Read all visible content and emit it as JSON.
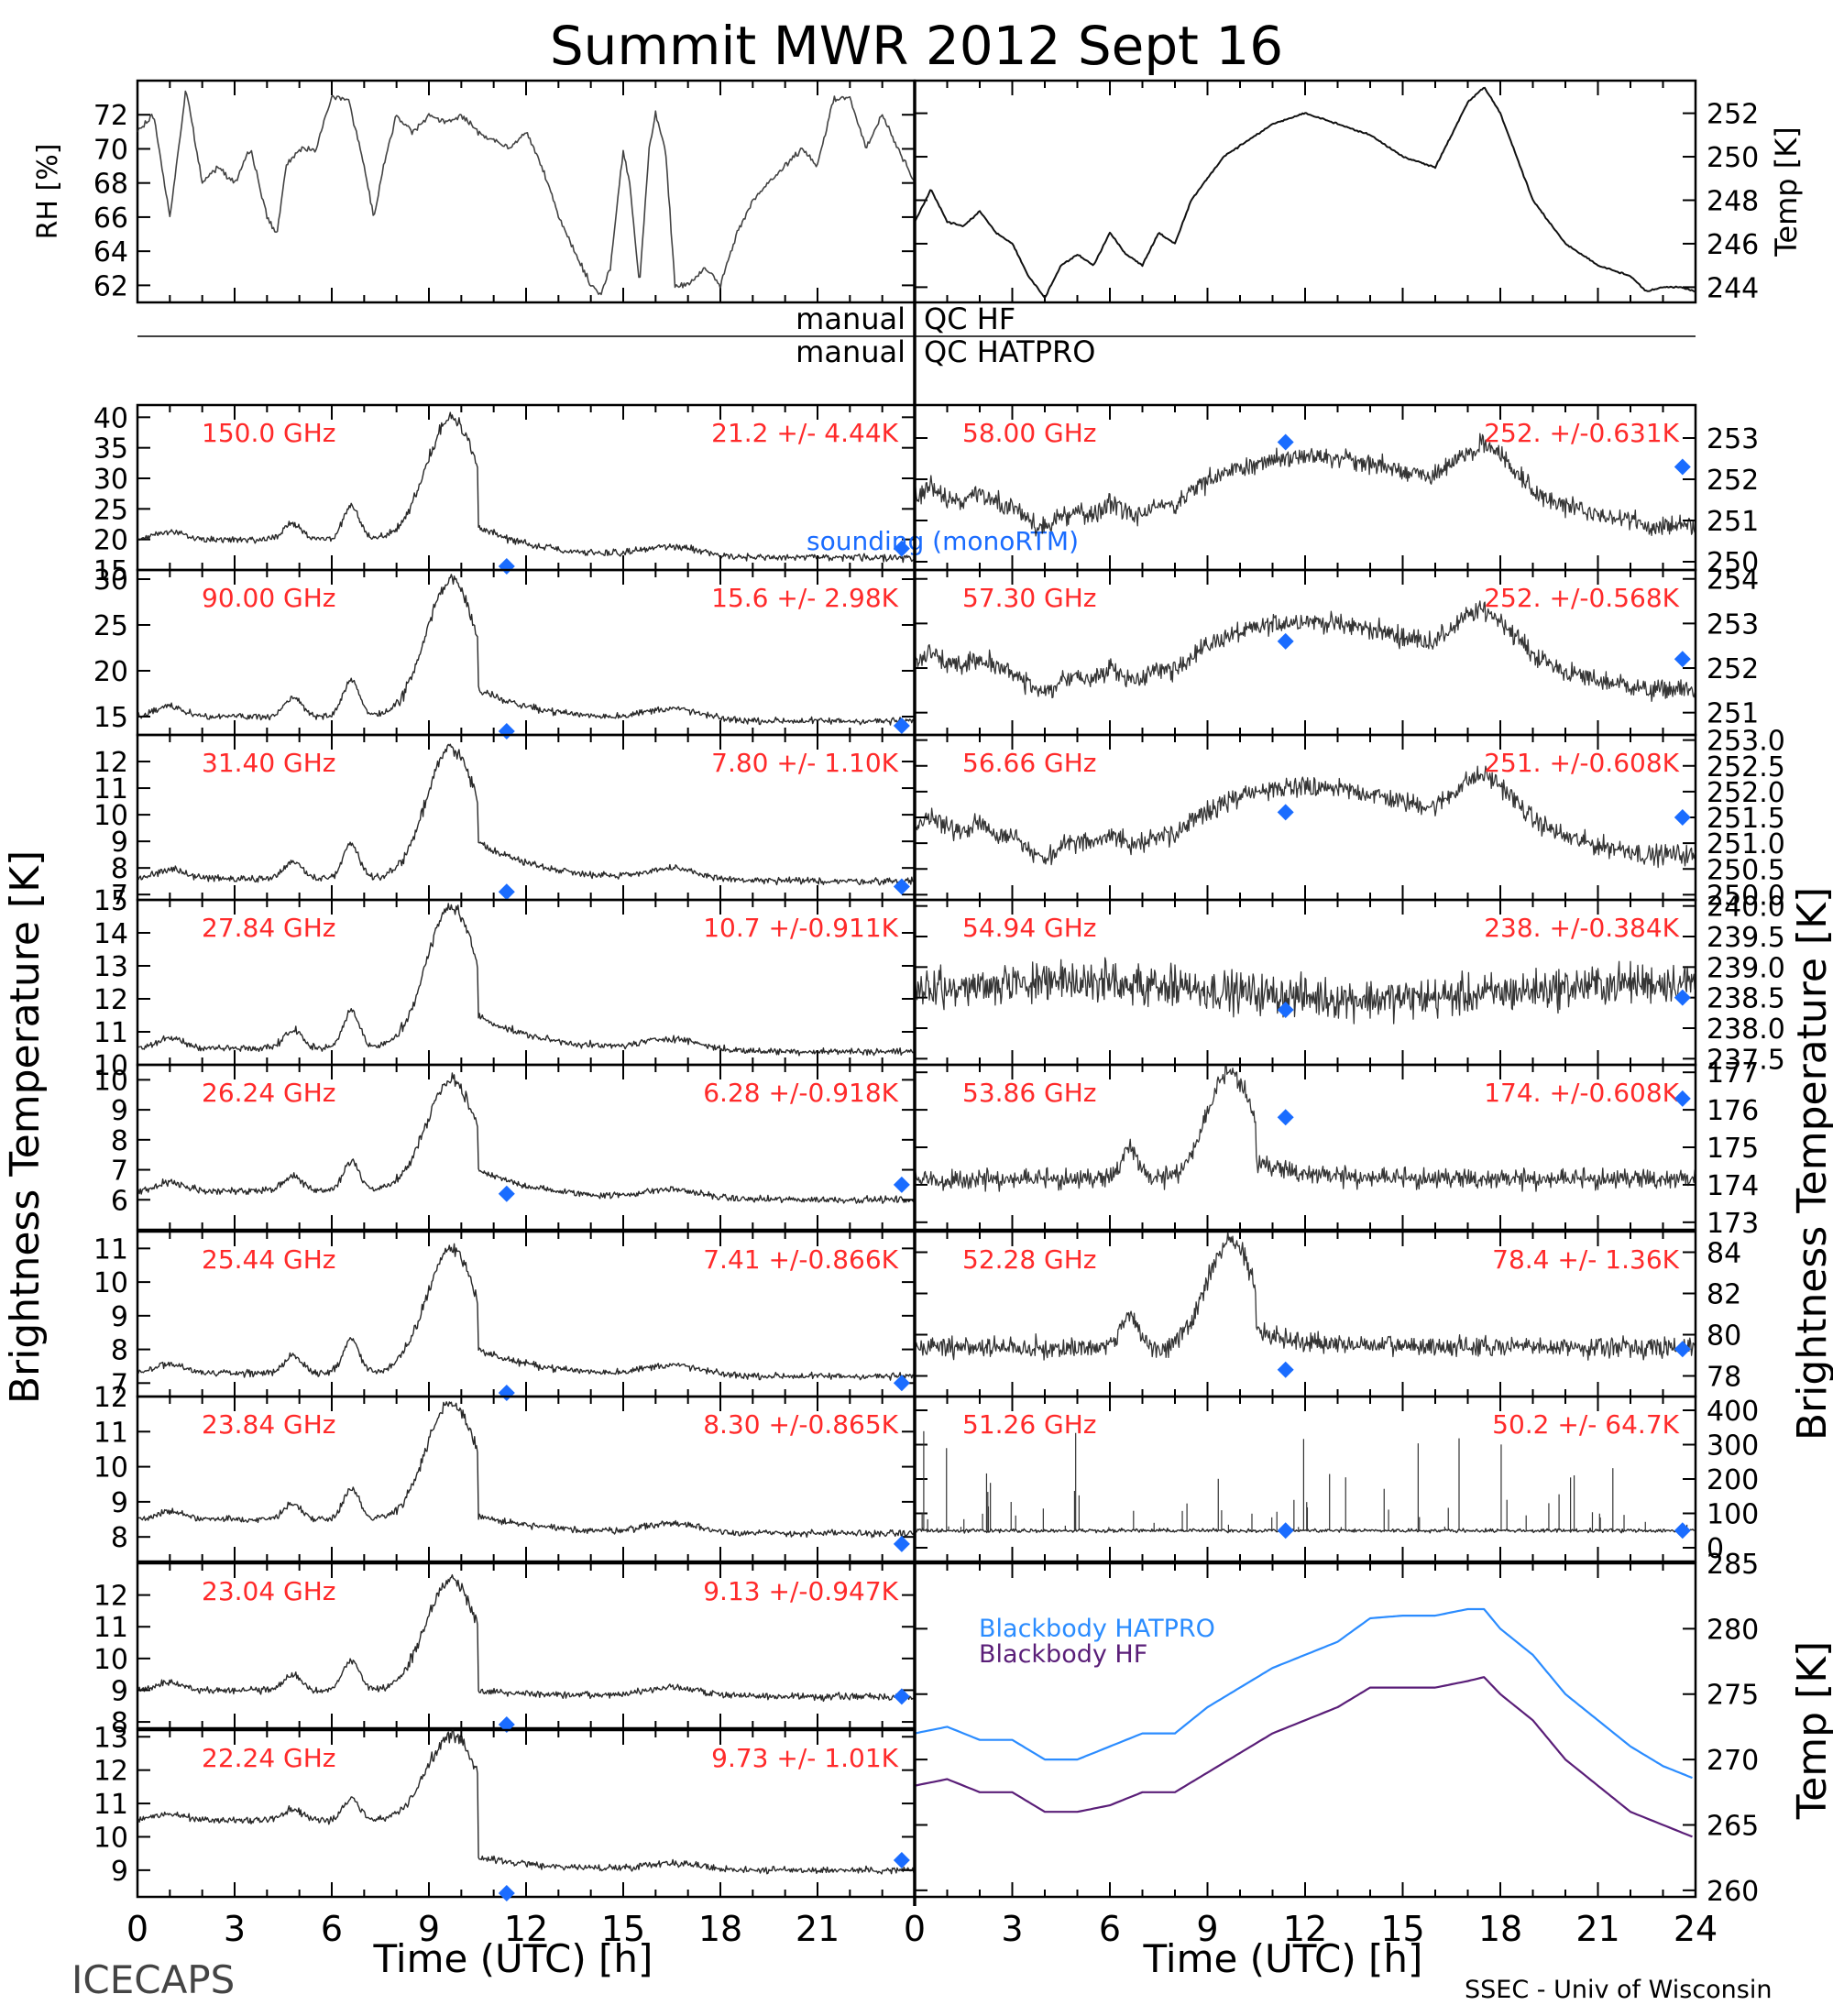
{
  "title": "Summit MWR 2012 Sept 16",
  "footer": {
    "left": "ICECAPS",
    "right": "SSEC - Univ of Wisconsin"
  },
  "axes": {
    "x_label": "Time (UTC) [h]",
    "left_x_ticks": [
      "0",
      "3",
      "6",
      "9",
      "12",
      "15",
      "18",
      "21"
    ],
    "right_x_ticks": [
      "0",
      "3",
      "6",
      "9",
      "12",
      "15",
      "18",
      "21",
      "24"
    ],
    "left_y_label": "Brightness Temperature [K]",
    "right_y_label": "Brightness Temperature [K]"
  },
  "qc": {
    "left1": "manual",
    "right1": "QC HF",
    "left2": "manual",
    "right2": "QC HATPRO"
  },
  "legends": {
    "sounding": "sounding (monoRTM)",
    "bb_hatpro": "Blackbody HATPRO",
    "bb_hf": "Blackbody HF"
  },
  "colors": {
    "label_red": "#ff2a2a",
    "marker_blue": "#1a6cff",
    "bb_hatpro": "#2b8cff",
    "bb_hf": "#5a1e78"
  },
  "chart_data": [
    {
      "id": "rh",
      "type": "line",
      "ylabel": "RH [%]",
      "ylim": [
        61,
        74
      ],
      "yticks": [
        62,
        64,
        66,
        68,
        70,
        72
      ],
      "x": [
        0,
        0.5,
        1,
        1.5,
        2,
        2.5,
        3,
        3.5,
        4,
        4.3,
        4.6,
        5,
        5.5,
        6,
        6.5,
        7,
        7.3,
        7.6,
        8,
        8.5,
        9,
        9.5,
        10,
        10.5,
        11,
        11.5,
        12,
        12.5,
        13,
        13.5,
        14,
        14.3,
        14.6,
        15,
        15.2,
        15.5,
        15.8,
        16,
        16.3,
        16.6,
        17,
        17.5,
        18,
        18.5,
        19,
        19.5,
        20,
        20.5,
        21,
        21.5,
        22,
        22.5,
        23,
        23.5,
        24
      ],
      "y": [
        71,
        72,
        66,
        73.5,
        68,
        69,
        68,
        70,
        66,
        65,
        69,
        70,
        70,
        73,
        73,
        69,
        66,
        69,
        72,
        71,
        72,
        71.5,
        72,
        71,
        70.5,
        70,
        71,
        69,
        66,
        64,
        62,
        61.5,
        63,
        70,
        68,
        62,
        70,
        72,
        70,
        62,
        62,
        63,
        62,
        65,
        67,
        68,
        69,
        70,
        69,
        73,
        73,
        70,
        72,
        70,
        68
      ]
    },
    {
      "id": "temp",
      "type": "line",
      "ylabel": "Temp [K]",
      "ylim": [
        243.3,
        253.5
      ],
      "yticks": [
        244,
        246,
        248,
        250,
        252
      ],
      "x": [
        0,
        0.5,
        1,
        1.5,
        2,
        2.5,
        3,
        3.5,
        4,
        4.5,
        5,
        5.5,
        6,
        6.5,
        7,
        7.5,
        8,
        8.5,
        9,
        9.5,
        10,
        11,
        12,
        13,
        14,
        15,
        16,
        17,
        17.5,
        18,
        18.5,
        19,
        20,
        21,
        22,
        22.5,
        23,
        23.5,
        24
      ],
      "y": [
        247,
        248.5,
        247,
        246.8,
        247.5,
        246.5,
        246,
        244.5,
        243.5,
        245,
        245.5,
        245,
        246.5,
        245.5,
        245,
        246.5,
        246,
        248,
        249,
        250,
        250.5,
        251.5,
        252,
        251.5,
        251,
        250,
        249.5,
        252.5,
        253.2,
        252,
        250,
        248,
        246,
        245,
        244.5,
        243.8,
        244,
        244,
        243.8
      ]
    },
    {
      "id": "ch150",
      "type": "line",
      "freq": "150.0 GHz",
      "stat": "21.2 +/- 4.44K",
      "ylim": [
        15,
        42
      ],
      "yticks": [
        15,
        20,
        25,
        30,
        35,
        40
      ],
      "base": 20,
      "peak": 40,
      "after": 22,
      "late": 17,
      "marker1": 15.5,
      "marker2": 18.5,
      "sounding": true
    },
    {
      "id": "ch90",
      "type": "line",
      "freq": "90.00 GHz",
      "stat": "15.6 +/- 2.98K",
      "ylim": [
        13,
        31
      ],
      "yticks": [
        15,
        20,
        25,
        30
      ],
      "base": 15,
      "peak": 30,
      "after": 18,
      "late": 14.5,
      "marker1": 13,
      "marker2": 14
    },
    {
      "id": "ch3140",
      "type": "line",
      "freq": "31.40 GHz",
      "stat": "7.80 +/- 1.10K",
      "ylim": [
        6.8,
        13
      ],
      "yticks": [
        7,
        8,
        9,
        10,
        11,
        12
      ],
      "base": 7.6,
      "peak": 12.5,
      "after": 9,
      "late": 7.5,
      "marker1": 7.1,
      "marker2": 7.3
    },
    {
      "id": "ch2784",
      "type": "line",
      "freq": "27.84 GHz",
      "stat": "10.7 +/-0.911K",
      "ylim": [
        10,
        15
      ],
      "yticks": [
        10,
        11,
        12,
        13,
        14,
        15
      ],
      "base": 10.5,
      "peak": 14.8,
      "after": 11.5,
      "late": 10.4
    },
    {
      "id": "ch2624",
      "type": "line",
      "freq": "26.24 GHz",
      "stat": "6.28 +/-0.918K",
      "ylim": [
        5,
        10.5
      ],
      "yticks": [
        6,
        7,
        8,
        9,
        10
      ],
      "base": 6.3,
      "peak": 10,
      "after": 7,
      "late": 6,
      "marker1": 6.2,
      "marker2": 6.5
    },
    {
      "id": "ch2544",
      "type": "line",
      "freq": "25.44 GHz",
      "stat": "7.41 +/-0.866K",
      "ylim": [
        6.6,
        11.5
      ],
      "yticks": [
        7,
        8,
        9,
        10,
        11
      ],
      "base": 7.3,
      "peak": 11,
      "after": 8,
      "late": 7.2,
      "marker1": 6.7,
      "marker2": 7
    },
    {
      "id": "ch2384",
      "type": "line",
      "freq": "23.84 GHz",
      "stat": "8.30 +/-0.865K",
      "ylim": [
        7.3,
        12
      ],
      "yticks": [
        8,
        9,
        10,
        11,
        12
      ],
      "base": 8.5,
      "peak": 11.8,
      "after": 8.6,
      "late": 8.1,
      "marker1": null,
      "marker2": 7.8
    },
    {
      "id": "ch2304",
      "type": "line",
      "freq": "23.04 GHz",
      "stat": "9.13 +/-0.947K",
      "ylim": [
        7.8,
        13
      ],
      "yticks": [
        8,
        9,
        10,
        11,
        12
      ],
      "base": 9,
      "peak": 12.5,
      "after": 9,
      "late": 8.8,
      "marker1": 7.8,
      "marker2": 8.8
    },
    {
      "id": "ch2224",
      "type": "line",
      "freq": "22.24 GHz",
      "stat": "9.73 +/- 1.01K",
      "ylim": [
        8.2,
        13.2
      ],
      "yticks": [
        9,
        10,
        11,
        12,
        13
      ],
      "base": 10.5,
      "peak": 13,
      "after": 9.4,
      "late": 9,
      "marker1": 8.3,
      "marker2": 9.3
    },
    {
      "id": "ch5800",
      "type": "line",
      "freq": "58.00 GHz",
      "stat": "252. +/-0.631K",
      "ylim": [
        249.8,
        253.8
      ],
      "yticks": [
        250,
        251,
        252,
        253
      ],
      "mode": "temp",
      "marker1": 252.9,
      "marker2": 252.3
    },
    {
      "id": "ch5730",
      "type": "line",
      "freq": "57.30 GHz",
      "stat": "252. +/-0.568K",
      "ylim": [
        250.5,
        254.2
      ],
      "yticks": [
        251,
        252,
        253,
        254
      ],
      "mode": "temp",
      "marker1": 252.6,
      "marker2": 252.2
    },
    {
      "id": "ch5666",
      "type": "line",
      "freq": "56.66 GHz",
      "stat": "251. +/-0.608K",
      "ylim": [
        249.9,
        253.1
      ],
      "yticks": [
        250.0,
        250.5,
        251.0,
        251.5,
        252.0,
        252.5,
        253.0
      ],
      "mode": "temp",
      "marker1": 251.6,
      "marker2": 251.5
    },
    {
      "id": "ch5494",
      "type": "line",
      "freq": "54.94 GHz",
      "stat": "238. +/-0.384K",
      "ylim": [
        237.4,
        240.1
      ],
      "yticks": [
        237.5,
        238.0,
        238.5,
        239.0,
        239.5,
        240.0
      ],
      "mode": "noise",
      "marker1": 238.3,
      "marker2": 238.5
    },
    {
      "id": "ch5386",
      "type": "line",
      "freq": "53.86 GHz",
      "stat": "174. +/-0.608K",
      "ylim": [
        172.8,
        177.2
      ],
      "yticks": [
        173,
        174,
        175,
        176,
        177
      ],
      "mode": "peak",
      "marker1": 175.8,
      "marker2": 176.3
    },
    {
      "id": "ch5228",
      "type": "line",
      "freq": "52.28 GHz",
      "stat": "78.4 +/- 1.36K",
      "ylim": [
        77,
        85
      ],
      "yticks": [
        78,
        80,
        82,
        84
      ],
      "mode": "peak",
      "marker1": 78.3,
      "marker2": 79.3
    },
    {
      "id": "ch5126",
      "type": "scatter",
      "freq": "51.26 GHz",
      "stat": "50.2 +/- 64.7K",
      "ylim": [
        -40,
        440
      ],
      "yticks": [
        0,
        100,
        200,
        300,
        400
      ],
      "mode": "spiky",
      "marker1": 50,
      "marker2": 50
    },
    {
      "id": "bb",
      "type": "line",
      "ylabel": "Temp [K]",
      "ylim": [
        259.5,
        285
      ],
      "yticks": [
        260,
        265,
        270,
        275,
        280,
        285
      ],
      "x": [
        0,
        1,
        2,
        3,
        4,
        5,
        6,
        7,
        8,
        9,
        10,
        11,
        12,
        13,
        14,
        15,
        16,
        17,
        17.5,
        18,
        19,
        20,
        21,
        22,
        23,
        24
      ],
      "hatpro": [
        272,
        272.5,
        271.5,
        271.5,
        270,
        270,
        271,
        272,
        272,
        274,
        275.5,
        277,
        278,
        279,
        280.8,
        281,
        281,
        281.5,
        281.5,
        280,
        278,
        275,
        273,
        271,
        269.5,
        268.5
      ],
      "hf": [
        268,
        268.5,
        267.5,
        267.5,
        266,
        266,
        266.5,
        267.5,
        267.5,
        269,
        270.5,
        272,
        273,
        274,
        275.5,
        275.5,
        275.5,
        276,
        276.3,
        275,
        273,
        270,
        268,
        266,
        265,
        264
      ]
    }
  ]
}
